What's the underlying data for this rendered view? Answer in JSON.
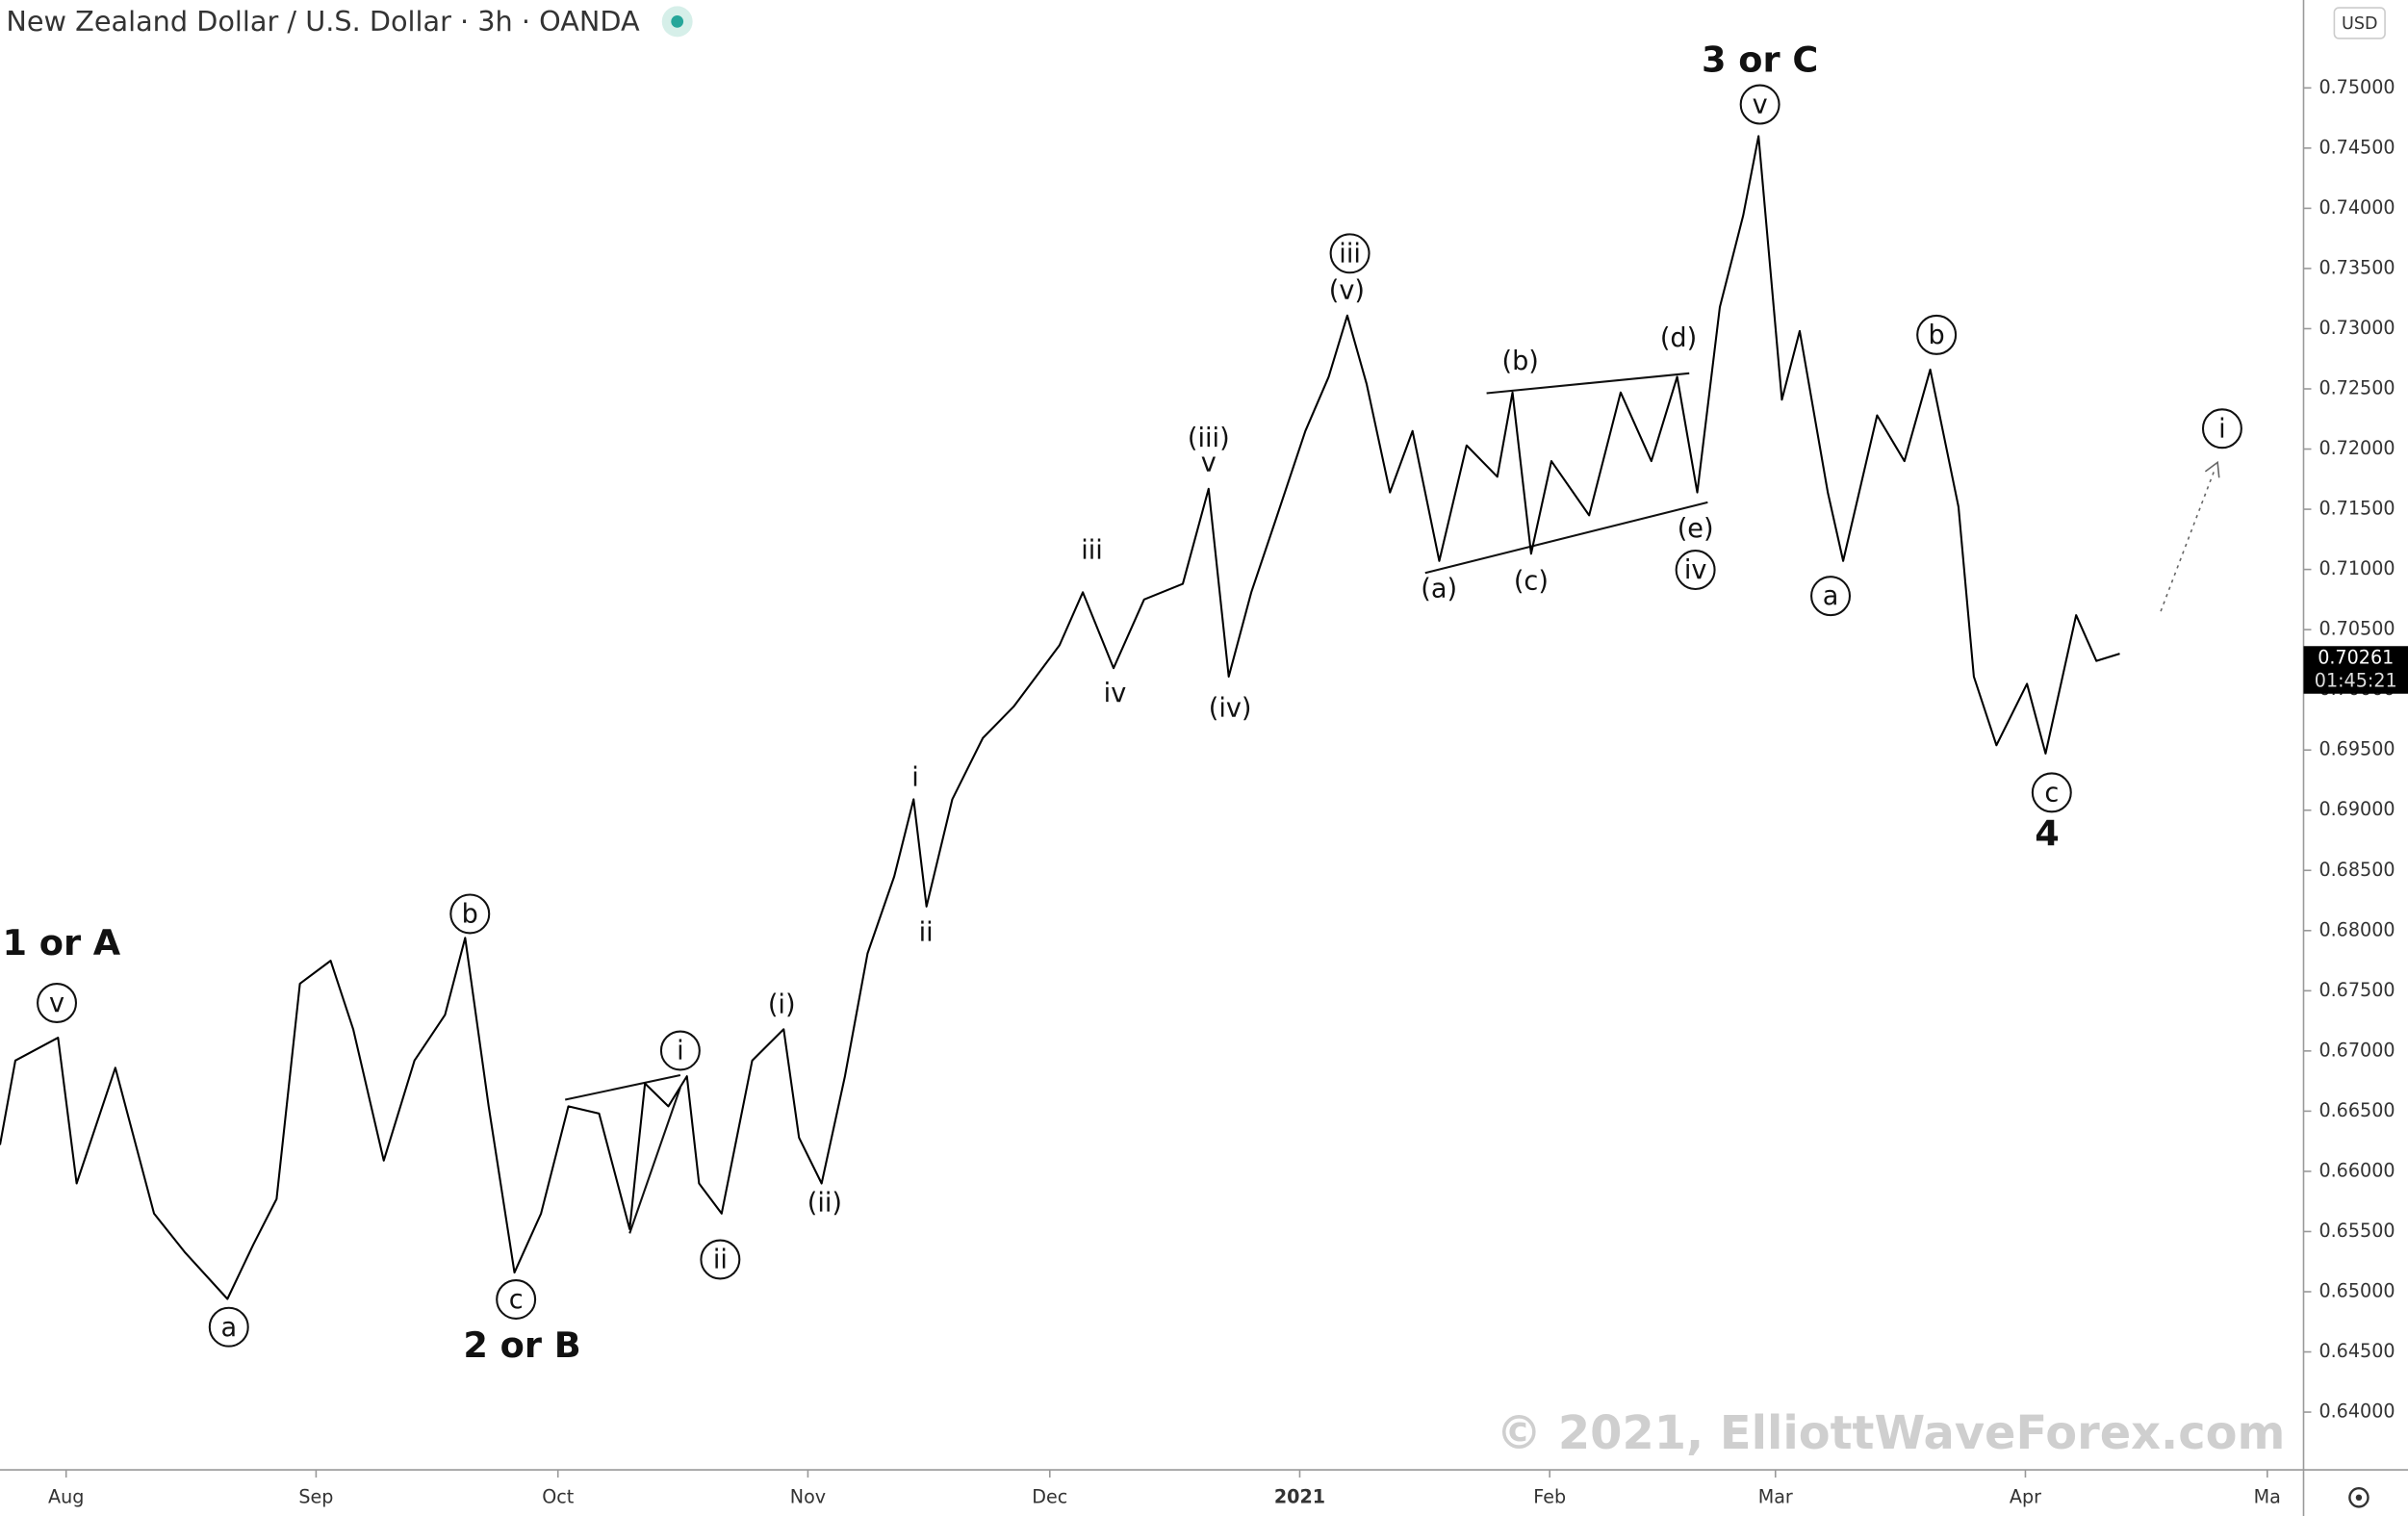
{
  "chart_data": {
    "type": "line",
    "title": "New Zealand Dollar / U.S. Dollar · 3h · OANDA",
    "watermark": "© 2021, ElliottWaveForex.com",
    "currency": "USD",
    "last_price": 0.70261,
    "countdown": "01:45:21",
    "color": "#000000",
    "x": [
      -8.2,
      -6.3,
      -1.0,
      1.3,
      6.1,
      10.9,
      14.7,
      20.0,
      23.2,
      26.1,
      29.0,
      32.8,
      35.6,
      39.4,
      43.2,
      47.0,
      49.5,
      52.4,
      55.6,
      58.9,
      62.3,
      66.1,
      69.9,
      71.8,
      74.7,
      77.0,
      78.5,
      81.3,
      85.1,
      89.0,
      90.9,
      93.7,
      96.6,
      99.4,
      102.7,
      105.1,
      106.7,
      109.9,
      113.7,
      117.5,
      123.2,
      126.1,
      129.9,
      133.7,
      138.5,
      141.7,
      144.2,
      147.0,
      149.9,
      153.7,
      156.6,
      158.9,
      161.3,
      164.2,
      167.0,
      170.3,
      173.7,
      177.5,
      179.4,
      181.7,
      184.2,
      188.9,
      192.8,
      196.6,
      199.8,
      202.3,
      205.1,
      208.0,
      209.9,
      212.8,
      215.0,
      218.5,
      220.4,
      224.6,
      228.0,
      231.2,
      234.7,
      236.6,
      239.4,
      243.2,
      245.5,
      249.3,
      251.8,
      254.7
    ],
    "values": [
      0.6622,
      0.6692,
      0.6711,
      0.659,
      0.6686,
      0.6565,
      0.6533,
      0.6494,
      0.6539,
      0.6577,
      0.6756,
      0.6775,
      0.6718,
      0.6609,
      0.6692,
      0.673,
      0.6794,
      0.6654,
      0.6516,
      0.6565,
      0.6654,
      0.6648,
      0.6552,
      0.6673,
      0.6654,
      0.6679,
      0.659,
      0.6565,
      0.6692,
      0.6718,
      0.6628,
      0.659,
      0.6679,
      0.6781,
      0.6845,
      0.6909,
      0.682,
      0.6909,
      0.696,
      0.6986,
      0.7037,
      0.7081,
      0.7018,
      0.7075,
      0.7088,
      0.7167,
      0.7011,
      0.7081,
      0.7139,
      0.7215,
      0.726,
      0.7311,
      0.7254,
      0.7164,
      0.7215,
      0.7107,
      0.7203,
      0.7177,
      0.7247,
      0.7113,
      0.719,
      0.7145,
      0.7247,
      0.719,
      0.726,
      0.7164,
      0.7318,
      0.7394,
      0.746,
      0.7241,
      0.7298,
      0.7164,
      0.7107,
      0.7228,
      0.719,
      0.7266,
      0.7152,
      0.7011,
      0.6954,
      0.7005,
      0.6947,
      0.7062,
      0.7024,
      0.703
    ],
    "xlim": [
      -8.2,
      277.5
    ],
    "xticks": [
      {
        "value": 0,
        "label": "Aug"
      },
      {
        "value": 31,
        "label": "Sep"
      },
      {
        "value": 61,
        "label": "Oct"
      },
      {
        "value": 92,
        "label": "Nov"
      },
      {
        "value": 122,
        "label": "Dec"
      },
      {
        "value": 153,
        "label": "2021"
      },
      {
        "value": 184,
        "label": "Feb"
      },
      {
        "value": 212,
        "label": "Mar"
      },
      {
        "value": 243,
        "label": "Apr"
      },
      {
        "value": 273,
        "label": "Ma"
      }
    ],
    "ylim": [
      0.6352,
      0.7573
    ],
    "yticks": [
      {
        "value": 0.64,
        "label": "0.64000"
      },
      {
        "value": 0.645,
        "label": "0.64500"
      },
      {
        "value": 0.65,
        "label": "0.65000"
      },
      {
        "value": 0.655,
        "label": "0.65500"
      },
      {
        "value": 0.66,
        "label": "0.66000"
      },
      {
        "value": 0.665,
        "label": "0.66500"
      },
      {
        "value": 0.67,
        "label": "0.67000"
      },
      {
        "value": 0.675,
        "label": "0.67500"
      },
      {
        "value": 0.68,
        "label": "0.68000"
      },
      {
        "value": 0.685,
        "label": "0.68500"
      },
      {
        "value": 0.69,
        "label": "0.69000"
      },
      {
        "value": 0.695,
        "label": "0.69500"
      },
      {
        "value": 0.7,
        "label": "0.70000"
      },
      {
        "value": 0.705,
        "label": "0.70500"
      },
      {
        "value": 0.71,
        "label": "0.71000"
      },
      {
        "value": 0.715,
        "label": "0.71500"
      },
      {
        "value": 0.72,
        "label": "0.72000"
      },
      {
        "value": 0.725,
        "label": "0.72500"
      },
      {
        "value": 0.73,
        "label": "0.73000"
      },
      {
        "value": 0.735,
        "label": "0.73500"
      },
      {
        "value": 0.74,
        "label": "0.74000"
      },
      {
        "value": 0.745,
        "label": "0.74500"
      },
      {
        "value": 0.75,
        "label": "0.75000"
      }
    ],
    "annotations": [
      "1 or A",
      "v",
      "a",
      "b",
      "c",
      "2 or B",
      "i",
      "ii",
      "(i)",
      "(ii)",
      "i",
      "ii",
      "iii",
      "iv",
      "(iii)",
      "v",
      "(iv)",
      "iii",
      "(v)",
      "(a)",
      "(b)",
      "(c)",
      "(d)",
      "(e)",
      "iv",
      "3 or C",
      "v",
      "a",
      "b",
      "c",
      "4",
      "i"
    ]
  }
}
